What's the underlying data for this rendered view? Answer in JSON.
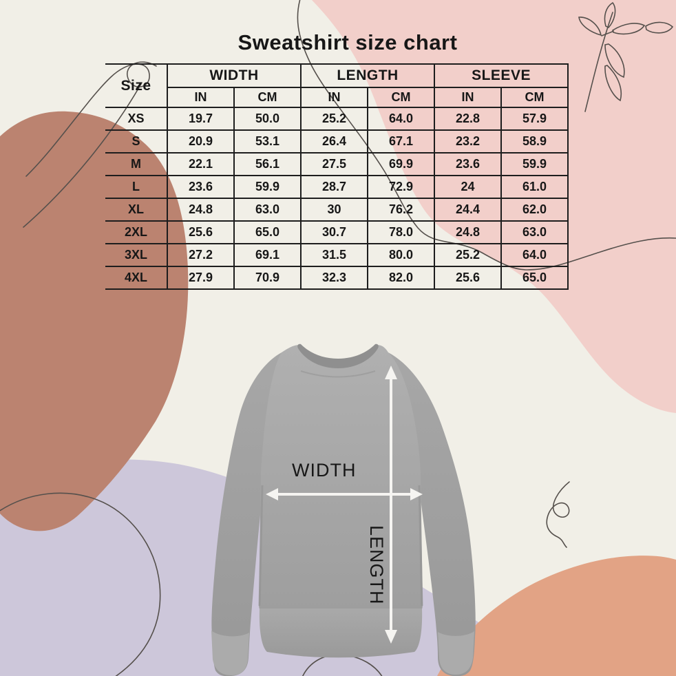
{
  "page": {
    "title": "Sweatshirt size chart"
  },
  "size_chart": {
    "corner_label": "Size",
    "group_headers": [
      "WIDTH",
      "LENGTH",
      "SLEEVE"
    ],
    "unit_headers": [
      "IN",
      "CM",
      "IN",
      "CM",
      "IN",
      "CM"
    ],
    "rows": [
      {
        "size": "XS",
        "cells": [
          "19.7",
          "50.0",
          "25.2",
          "64.0",
          "22.8",
          "57.9"
        ]
      },
      {
        "size": "S",
        "cells": [
          "20.9",
          "53.1",
          "26.4",
          "67.1",
          "23.2",
          "58.9"
        ]
      },
      {
        "size": "M",
        "cells": [
          "22.1",
          "56.1",
          "27.5",
          "69.9",
          "23.6",
          "59.9"
        ]
      },
      {
        "size": "L",
        "cells": [
          "23.6",
          "59.9",
          "28.7",
          "72.9",
          "24",
          "61.0"
        ]
      },
      {
        "size": "XL",
        "cells": [
          "24.8",
          "63.0",
          "30",
          "76.2",
          "24.4",
          "62.0"
        ]
      },
      {
        "size": "2XL",
        "cells": [
          "25.6",
          "65.0",
          "30.7",
          "78.0",
          "24.8",
          "63.0"
        ]
      },
      {
        "size": "3XL",
        "cells": [
          "27.2",
          "69.1",
          "31.5",
          "80.0",
          "25.2",
          "64.0"
        ]
      },
      {
        "size": "4XL",
        "cells": [
          "27.9",
          "70.9",
          "32.3",
          "82.0",
          "25.6",
          "65.0"
        ]
      }
    ]
  },
  "diagram": {
    "width_label": "WIDTH",
    "length_label": "LENGTH"
  },
  "colors": {
    "background": "#f1efe7",
    "blob_pink": "#f2cfca",
    "blob_terracotta": "#bb8370",
    "blob_lavender": "#cdc7da",
    "blob_orange": "#e2a385",
    "line_art": "#55504c",
    "sweatshirt_gray": "#a6a6a6",
    "arrow_white": "#f5f4f1",
    "table_border": "#1d1d1d",
    "text": "#171717"
  }
}
